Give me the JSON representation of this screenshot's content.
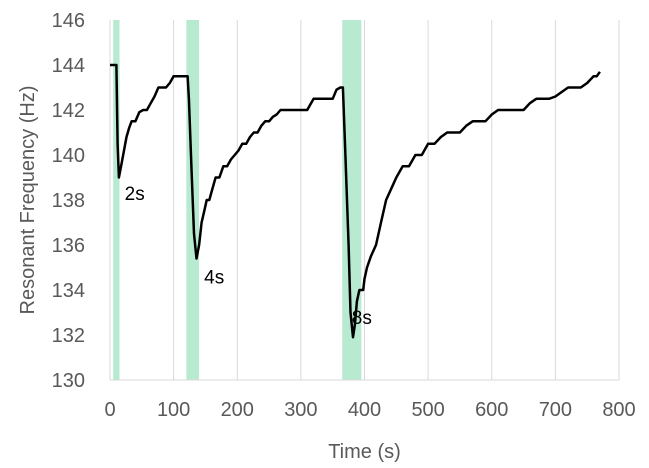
{
  "chart_data": {
    "type": "line",
    "xlabel": "Time (s)",
    "ylabel": "Resonant Frequency (Hz)",
    "xlim": [
      0,
      800
    ],
    "ylim": [
      130,
      146
    ],
    "x_ticks": [
      0,
      100,
      200,
      300,
      400,
      500,
      600,
      700,
      800
    ],
    "y_ticks": [
      130,
      132,
      134,
      136,
      138,
      140,
      142,
      144,
      146
    ],
    "grid": "vertical",
    "line_color": "#000000",
    "highlight_color": "#b7ead0",
    "highlight_bands": [
      {
        "x_start": 5,
        "x_end": 15
      },
      {
        "x_start": 120,
        "x_end": 140
      },
      {
        "x_start": 365,
        "x_end": 395
      }
    ],
    "annotations": [
      {
        "text": "2s",
        "x": 23,
        "y": 138.0
      },
      {
        "text": "4s",
        "x": 148,
        "y": 134.3
      },
      {
        "text": "8s",
        "x": 380,
        "y": 132.5
      }
    ],
    "series": [
      {
        "x": [
          0,
          5,
          10,
          12,
          14,
          18,
          22,
          26,
          30,
          34,
          40,
          46,
          52,
          58,
          64,
          70,
          76,
          82,
          88,
          94,
          100,
          106,
          110,
          118,
          122,
          124,
          128,
          132,
          136,
          140,
          144,
          148,
          152,
          156,
          160,
          166,
          172,
          178,
          184,
          190,
          196,
          202,
          208,
          214,
          220,
          226,
          232,
          238,
          244,
          250,
          256,
          262,
          268,
          274,
          280,
          286,
          290,
          300,
          310,
          320,
          330,
          340,
          350,
          356,
          362,
          366,
          370,
          375,
          378,
          382,
          385,
          388,
          392,
          398,
          400,
          404,
          410,
          418,
          426,
          434,
          442,
          450,
          460,
          470,
          480,
          490,
          500,
          510,
          520,
          530,
          540,
          550,
          560,
          570,
          580,
          590,
          600,
          610,
          620,
          630,
          640,
          650,
          660,
          670,
          680,
          690,
          700,
          710,
          720,
          730,
          740,
          750,
          760,
          765,
          770
        ],
        "y": [
          144.0,
          144.0,
          144.0,
          140.5,
          139.0,
          139.6,
          140.2,
          140.8,
          141.2,
          141.5,
          141.5,
          141.9,
          142.0,
          142.0,
          142.3,
          142.6,
          143.0,
          143.0,
          143.0,
          143.2,
          143.5,
          143.5,
          143.5,
          143.5,
          143.5,
          142.5,
          139.5,
          136.5,
          135.4,
          136.0,
          137.0,
          137.5,
          138.0,
          138.0,
          138.4,
          139.0,
          139.0,
          139.5,
          139.5,
          139.8,
          140.0,
          140.2,
          140.5,
          140.5,
          140.8,
          141.0,
          141.0,
          141.3,
          141.5,
          141.5,
          141.7,
          141.8,
          142.0,
          142.0,
          142.0,
          142.0,
          142.0,
          142.0,
          142.0,
          142.5,
          142.5,
          142.5,
          142.5,
          142.9,
          143.0,
          143.0,
          140.0,
          136.0,
          133.0,
          131.9,
          132.5,
          133.5,
          134.0,
          134.0,
          134.5,
          135.0,
          135.5,
          136.0,
          137.0,
          138.0,
          138.5,
          139.0,
          139.5,
          139.5,
          140.0,
          140.0,
          140.5,
          140.5,
          140.8,
          141.0,
          141.0,
          141.0,
          141.3,
          141.5,
          141.5,
          141.5,
          141.8,
          142.0,
          142.0,
          142.0,
          142.0,
          142.0,
          142.3,
          142.5,
          142.5,
          142.5,
          142.6,
          142.8,
          143.0,
          143.0,
          143.0,
          143.2,
          143.5,
          143.5,
          143.7
        ]
      }
    ]
  }
}
